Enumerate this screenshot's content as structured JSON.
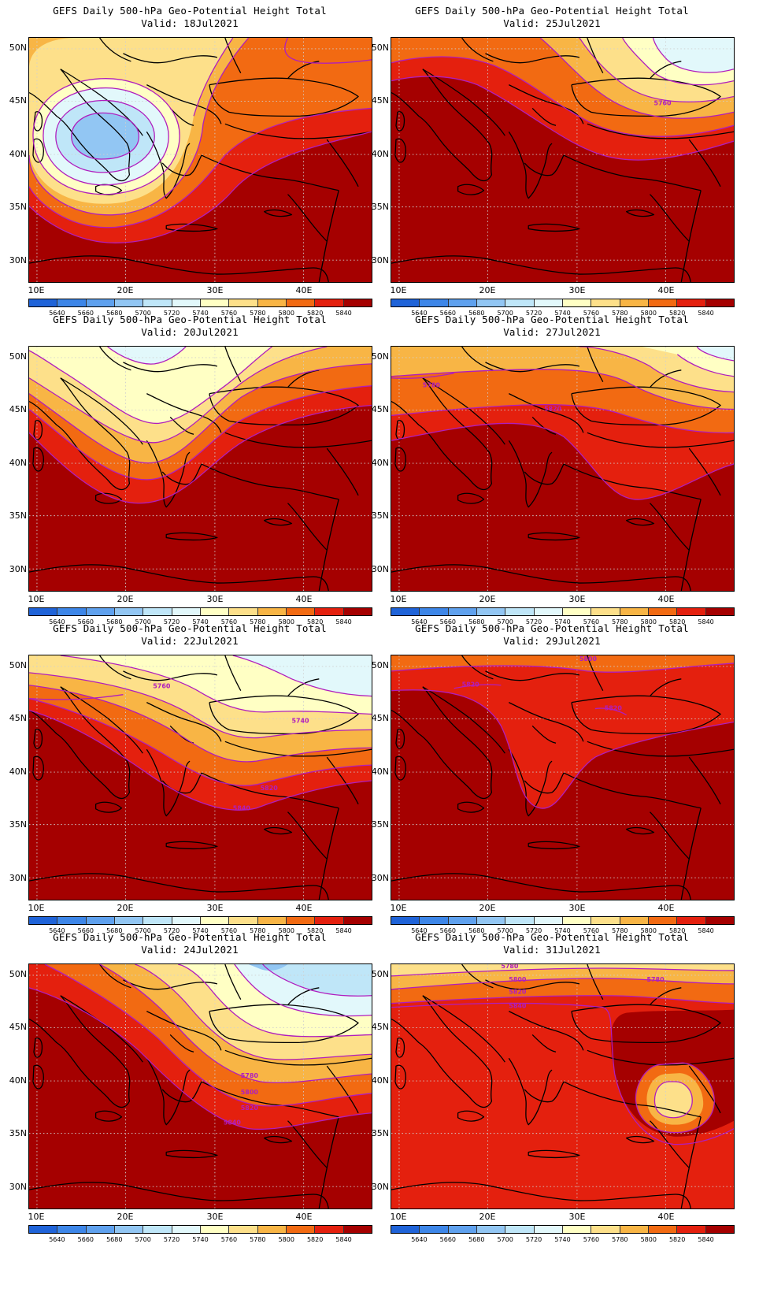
{
  "title_line": "GEFS Daily 500-hPa Geo-Potential Height Total",
  "lat_labels": [
    "50N",
    "45N",
    "40N",
    "35N",
    "30N"
  ],
  "lon_labels": [
    "10E",
    "20E",
    "30E",
    "40E"
  ],
  "colorbar": {
    "labels": [
      "5640",
      "5660",
      "5680",
      "5700",
      "5720",
      "5740",
      "5760",
      "5780",
      "5800",
      "5820",
      "5840"
    ],
    "colors": [
      "#1f63d8",
      "#3d86e8",
      "#5fa1ee",
      "#92c6f3",
      "#bfe6f8",
      "#e2f8fb",
      "#ffffc4",
      "#fde08a",
      "#f8b545",
      "#f26a12",
      "#e4200e",
      "#a50000"
    ]
  },
  "contour_color": "#b01dbe",
  "panels": [
    {
      "valid": "Valid: 18Jul2021",
      "contour_labels": []
    },
    {
      "valid": "Valid: 25Jul2021",
      "contour_labels": [
        "5760"
      ]
    },
    {
      "valid": "Valid: 20Jul2021",
      "contour_labels": []
    },
    {
      "valid": "Valid: 27Jul2021",
      "contour_labels": [
        "5780",
        "5820"
      ]
    },
    {
      "valid": "Valid: 22Jul2021",
      "contour_labels": [
        "5760",
        "5740",
        "5820",
        "5840"
      ]
    },
    {
      "valid": "Valid: 29Jul2021",
      "contour_labels": [
        "5800",
        "5820",
        "5820"
      ]
    },
    {
      "valid": "Valid: 24Jul2021",
      "contour_labels": [
        "5780",
        "5800",
        "5820",
        "5840"
      ]
    },
    {
      "valid": "Valid: 31Jul2021",
      "contour_labels": [
        "5780",
        "5800",
        "5820",
        "5840",
        "5780"
      ]
    }
  ]
}
